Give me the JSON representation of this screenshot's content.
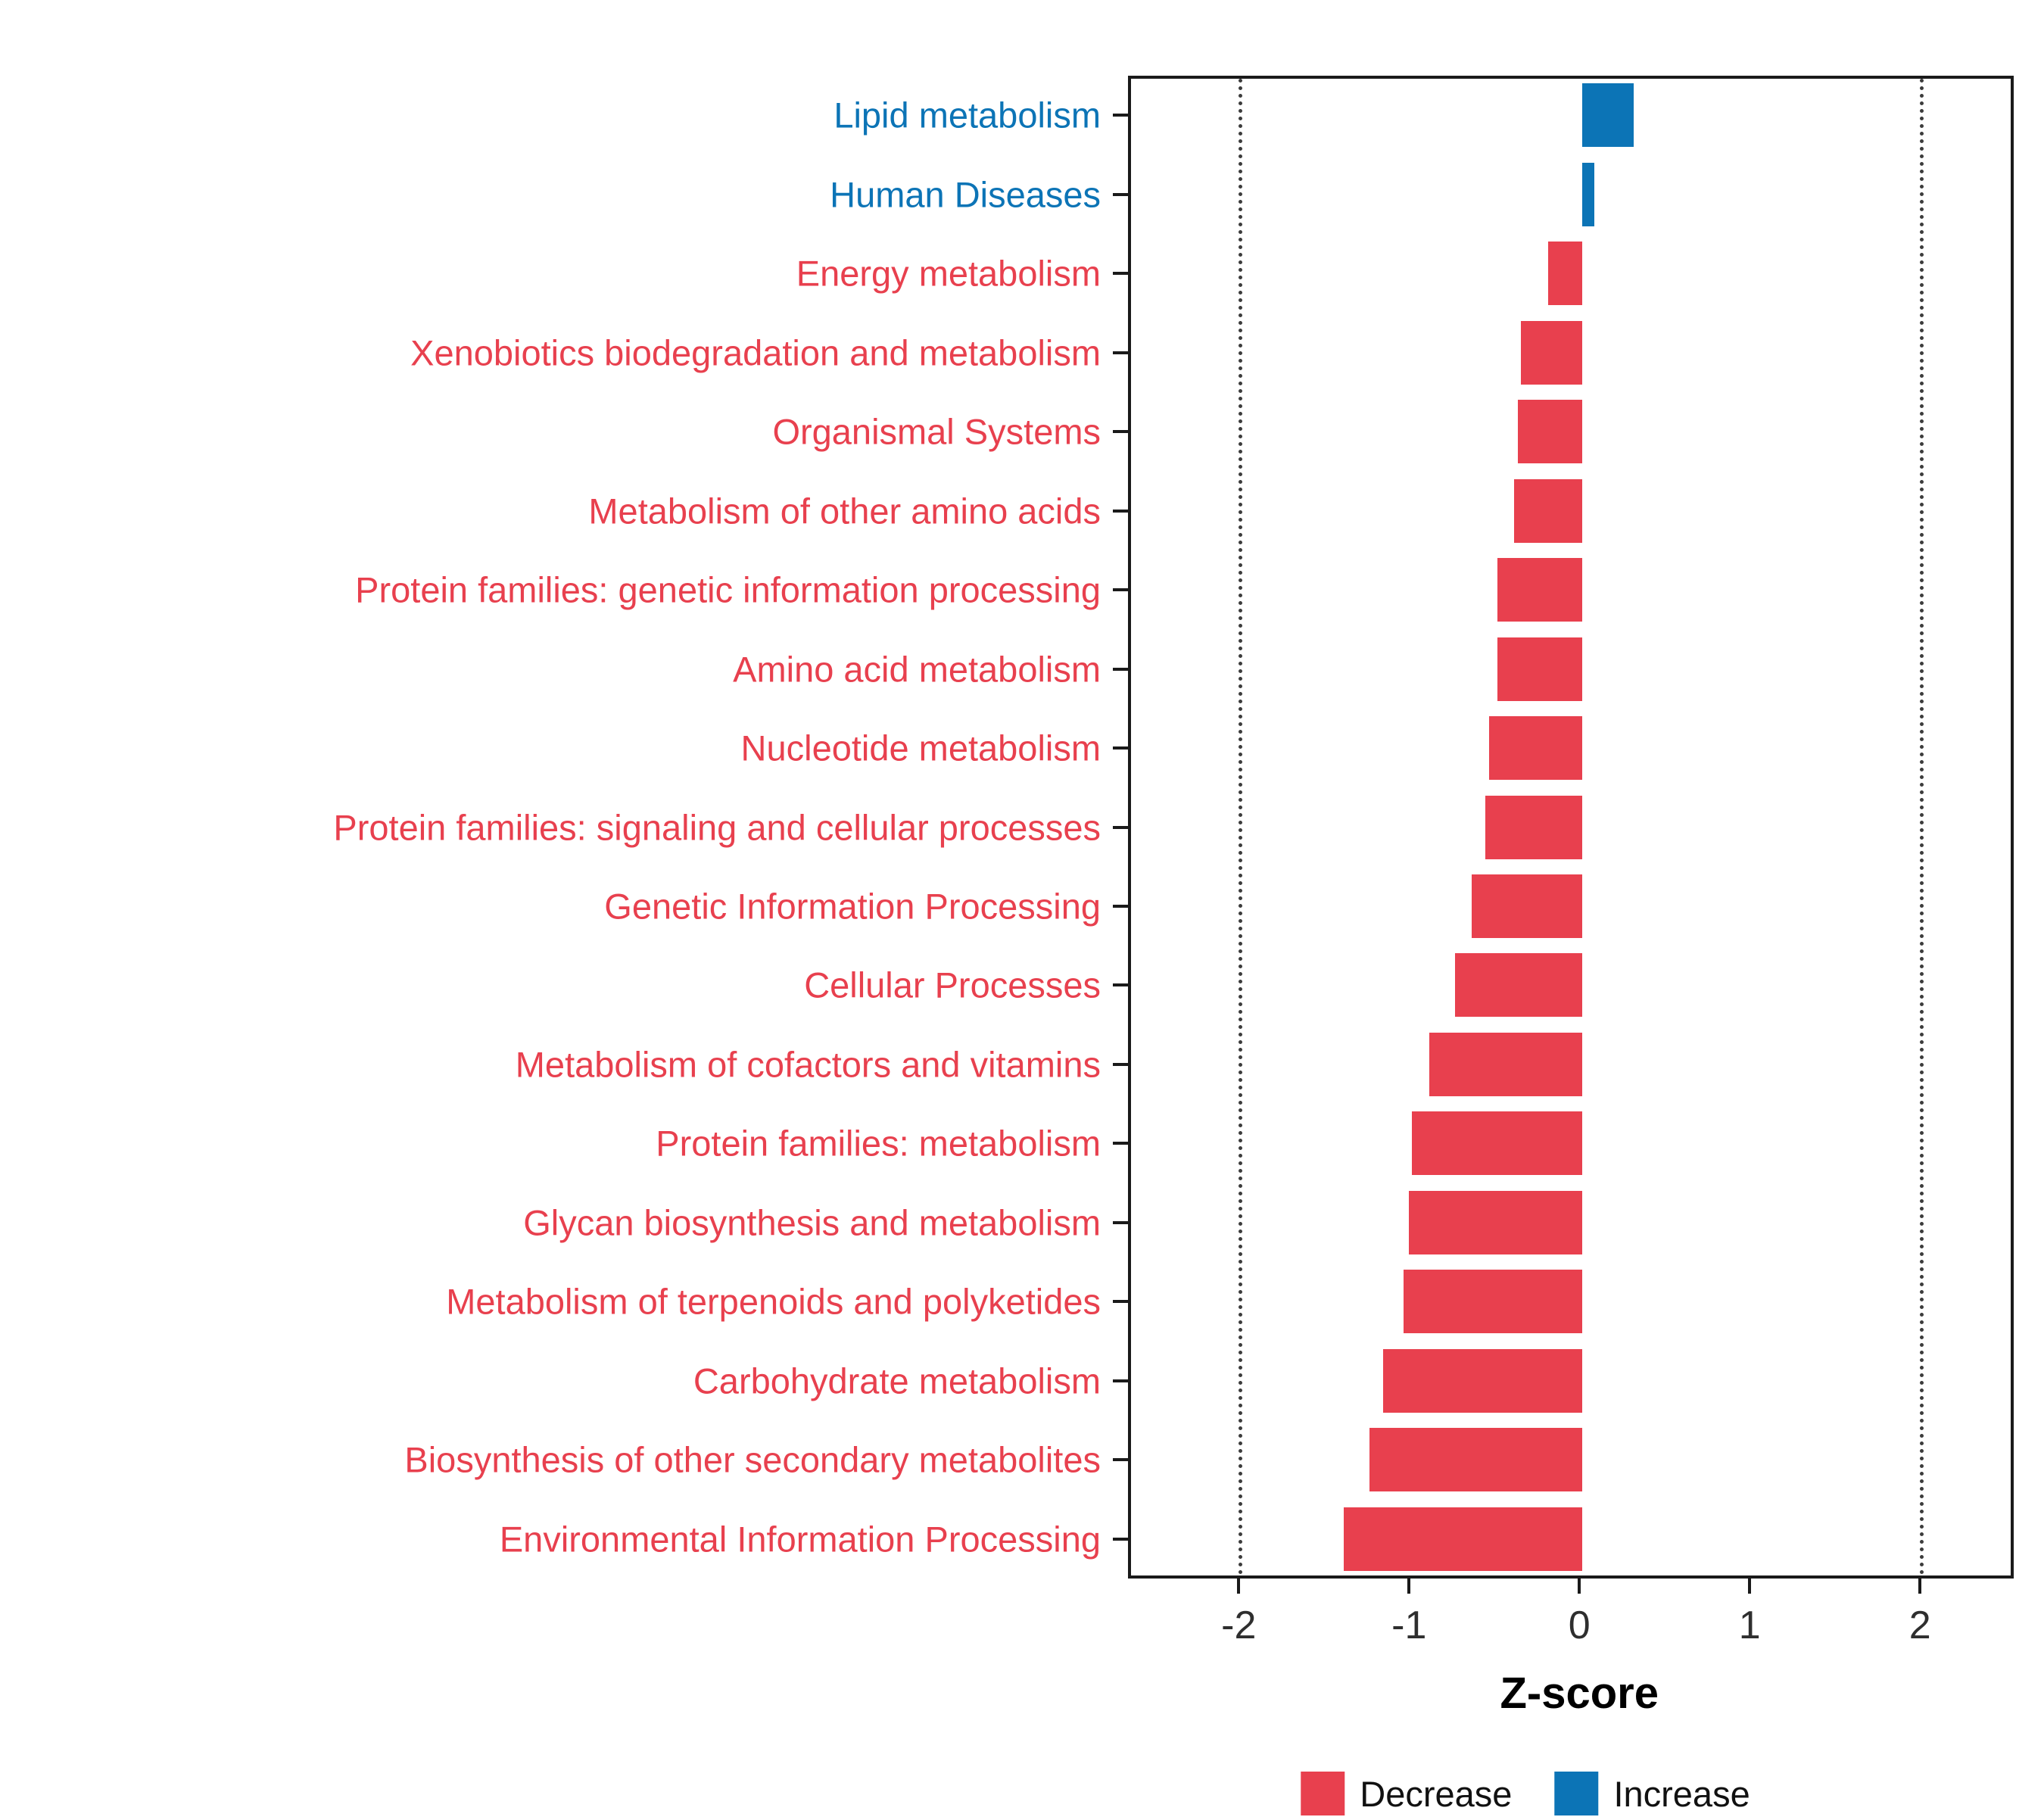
{
  "chart_data": {
    "type": "bar",
    "orientation": "horizontal",
    "title": "",
    "xlabel": "Z-score",
    "ylabel": "",
    "xlim": [
      -2.65,
      2.55
    ],
    "x_ticks": [
      -2,
      -1,
      0,
      1,
      2
    ],
    "threshold_lines": [
      -2,
      2
    ],
    "grid": "dotted vertical lines at thresholds only",
    "legend_position": "bottom",
    "categories": [
      "Lipid metabolism",
      "Human Diseases",
      "Energy metabolism",
      "Xenobiotics biodegradation and metabolism",
      "Organismal Systems",
      "Metabolism of other amino acids",
      "Protein families: genetic information processing",
      "Amino acid metabolism",
      "Nucleotide metabolism",
      "Protein families: signaling and cellular processes",
      "Genetic Information Processing",
      "Cellular Processes",
      "Metabolism of cofactors and vitamins",
      "Protein families: metabolism",
      "Glycan biosynthesis and metabolism",
      "Metabolism of terpenoids and polyketides",
      "Carbohydrate metabolism",
      "Biosynthesis of other secondary metabolites",
      "Environmental Information Processing"
    ],
    "values": [
      0.3,
      0.07,
      -0.2,
      -0.36,
      -0.38,
      -0.4,
      -0.5,
      -0.5,
      -0.55,
      -0.57,
      -0.65,
      -0.75,
      -0.9,
      -1.0,
      -1.02,
      -1.05,
      -1.17,
      -1.25,
      -1.4
    ],
    "directions": [
      "increase",
      "increase",
      "decrease",
      "decrease",
      "decrease",
      "decrease",
      "decrease",
      "decrease",
      "decrease",
      "decrease",
      "decrease",
      "decrease",
      "decrease",
      "decrease",
      "decrease",
      "decrease",
      "decrease",
      "decrease",
      "decrease"
    ]
  },
  "legend": {
    "decrease_label": "Decrease",
    "increase_label": "Increase"
  },
  "colors": {
    "decrease": "#E8404E",
    "increase": "#0C74B6",
    "tick_text": "#2e2e2e",
    "panel_border": "#1a1a1a",
    "grid_line": "#3c3c3c",
    "background": "#ffffff"
  }
}
